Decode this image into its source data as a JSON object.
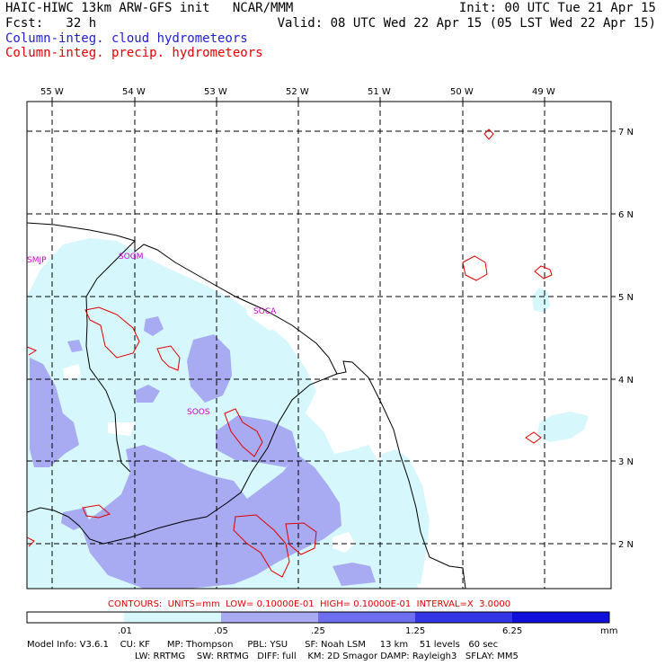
{
  "header": {
    "title": "HAIC-HIWC 13km ARW-GFS init   NCAR/MMM",
    "fcst": "Fcst:   32 h",
    "init": "Init: 00 UTC Tue 21 Apr 15",
    "valid": "Valid: 08 UTC Wed 22 Apr 15 (05 LST Wed 22 Apr 15)"
  },
  "legend": {
    "cloud": "Column-integ. cloud hydrometeors",
    "precip": "Column-integ. precip. hydrometeors",
    "cloud_color": "#1f1fd0",
    "precip_color": "#e00000"
  },
  "map": {
    "lon_labels": [
      "55 W",
      "54 W",
      "53 W",
      "52 W",
      "51 W",
      "50 W",
      "49 W"
    ],
    "lat_labels": [
      "7 N",
      "6 N",
      "5 N",
      "4 N",
      "3 N",
      "2 N"
    ],
    "stations": [
      "SMJP",
      "SOGM",
      "SOCA",
      "SOOS"
    ],
    "fill_colors": {
      "light": "#d6f8fc",
      "medium": "#a8aaf2",
      "coast": "#000000",
      "contour": "#e00000",
      "grid": "#000000"
    }
  },
  "contours_text": "CONTOURS:  UNITS=mm  LOW= 0.10000E-01  HIGH= 0.10000E-01  INTERVAL=X  3.0000",
  "colorbar": {
    "ticks": [
      ".01",
      ".05",
      ".25",
      "1.25",
      "6.25"
    ],
    "unit": "mm",
    "colors": [
      "#ffffff",
      "#d6f8fc",
      "#a8aaf2",
      "#6e6ef0",
      "#3535e8",
      "#1010dc"
    ]
  },
  "model_info": {
    "line1": "Model Info: V3.6.1    CU: KF      MP: Thompson     PBL: YSU      SF: Noah LSM     13 km    51 levels   60 sec",
    "line2": "LW: RRTMG    SW: RRTMG   DIFF: full    KM: 2D Smagor DAMP: Rayleigh3   SFLAY: MM5"
  }
}
